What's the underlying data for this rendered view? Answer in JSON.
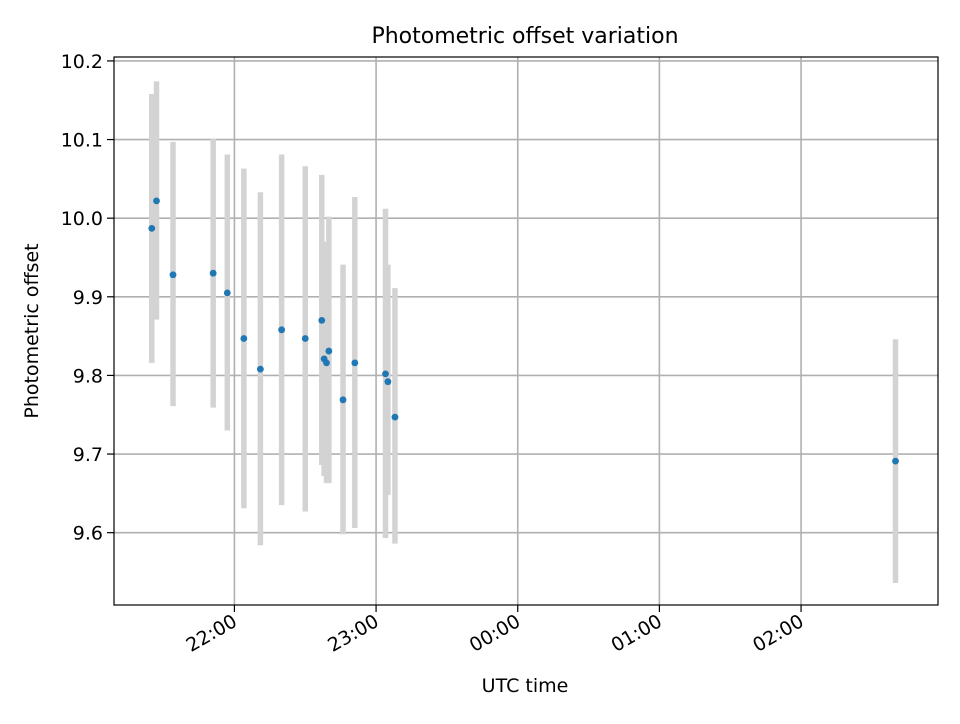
{
  "chart_data": {
    "type": "scatter",
    "title": "Photometric offset variation",
    "xlabel": "UTC time",
    "ylabel": "Photometric offset",
    "x_axis_kind": "time",
    "xlim": [
      "21:09",
      "02:58"
    ],
    "ylim": [
      9.508,
      10.205
    ],
    "x_ticks": [
      "22:00",
      "23:00",
      "00:00",
      "01:00",
      "02:00"
    ],
    "y_ticks": [
      9.6,
      9.7,
      9.8,
      9.9,
      10.0,
      10.1,
      10.2
    ],
    "y_tick_labels": [
      "9.6",
      "9.7",
      "9.8",
      "9.9",
      "10.0",
      "10.1",
      "10.2"
    ],
    "x_tick_label_rotation": "30 degrees",
    "grid": true,
    "legend": "none",
    "marker_color": "#1f77b4",
    "errorbar_color": "#d3d3d3",
    "points": [
      {
        "t": "21:25",
        "y": 9.987,
        "lo": 9.816,
        "hi": 10.158
      },
      {
        "t": "21:27",
        "y": 10.022,
        "lo": 9.871,
        "hi": 10.174
      },
      {
        "t": "21:34",
        "y": 9.928,
        "lo": 9.761,
        "hi": 10.097
      },
      {
        "t": "21:51",
        "y": 9.93,
        "lo": 9.759,
        "hi": 10.101
      },
      {
        "t": "21:57",
        "y": 9.905,
        "lo": 9.73,
        "hi": 10.081
      },
      {
        "t": "22:04",
        "y": 9.847,
        "lo": 9.631,
        "hi": 10.063
      },
      {
        "t": "22:11",
        "y": 9.808,
        "lo": 9.584,
        "hi": 10.033
      },
      {
        "t": "22:20",
        "y": 9.858,
        "lo": 9.635,
        "hi": 10.081
      },
      {
        "t": "22:30",
        "y": 9.847,
        "lo": 9.627,
        "hi": 10.066
      },
      {
        "t": "22:37",
        "y": 9.87,
        "lo": 9.686,
        "hi": 10.055
      },
      {
        "t": "22:38",
        "y": 9.821,
        "lo": 9.672,
        "hi": 9.97
      },
      {
        "t": "22:39",
        "y": 9.816,
        "lo": 9.663,
        "hi": 9.969
      },
      {
        "t": "22:40",
        "y": 9.831,
        "lo": 9.663,
        "hi": 10.002
      },
      {
        "t": "22:46",
        "y": 9.769,
        "lo": 9.598,
        "hi": 9.941
      },
      {
        "t": "22:51",
        "y": 9.816,
        "lo": 9.606,
        "hi": 10.027
      },
      {
        "t": "23:04",
        "y": 9.802,
        "lo": 9.593,
        "hi": 10.012
      },
      {
        "t": "23:05",
        "y": 9.792,
        "lo": 9.648,
        "hi": 9.941
      },
      {
        "t": "23:08",
        "y": 9.747,
        "lo": 9.586,
        "hi": 9.911
      },
      {
        "t": "02:40",
        "y": 9.691,
        "lo": 9.536,
        "hi": 9.846
      }
    ]
  }
}
